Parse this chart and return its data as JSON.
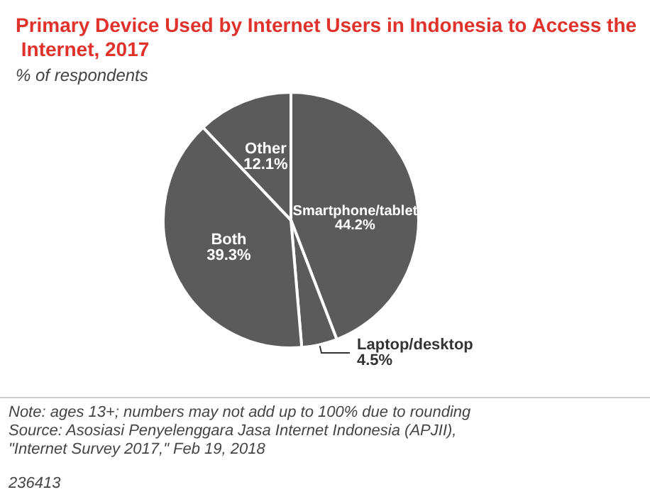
{
  "chart_data": {
    "type": "pie",
    "title": "Primary Device Used by Internet Users in Indonesia to Access the Internet, 2017",
    "subtitle": "% of respondents",
    "categories": [
      "Smartphone/tablet",
      "Laptop/desktop",
      "Both",
      "Other"
    ],
    "values": [
      44.2,
      4.5,
      39.3,
      12.1
    ],
    "value_labels": [
      "44.2%",
      "4.5%",
      "39.3%",
      "12.1%"
    ],
    "colors": [
      "#5b5b5b",
      "#5b5b5b",
      "#5b5b5b",
      "#5b5b5b"
    ],
    "data_labels": true,
    "legend": false,
    "annotations": [
      "Note: ages 13+; numbers may not add up to 100% due to rounding",
      "Source: Asosiasi Penyelenggara Jasa Internet Indonesia (APJII), \"Internet Survey 2017,\" Feb 19, 2018",
      "236413"
    ]
  }
}
